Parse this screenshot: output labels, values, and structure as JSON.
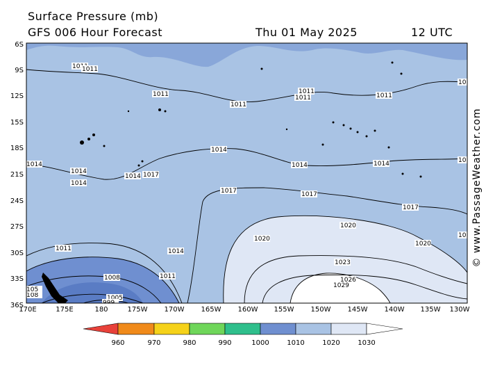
{
  "header": {
    "title": "Surface Pressure (mb)",
    "subtitle": "GFS 006 Hour Forecast",
    "date": "Thu 01 May 2025",
    "time": "12 UTC"
  },
  "credit": "© www.PassageWeather.com",
  "axes": {
    "lat_labels": [
      "6S",
      "9S",
      "12S",
      "15S",
      "18S",
      "21S",
      "24S",
      "27S",
      "30S",
      "33S",
      "36S"
    ],
    "lon_labels": [
      "170E",
      "175E",
      "180",
      "175W",
      "170W",
      "165W",
      "160W",
      "155W",
      "150W",
      "145W",
      "140W",
      "135W",
      "130W"
    ]
  },
  "legend": {
    "labels": [
      "960",
      "970",
      "980",
      "990",
      "1000",
      "1010",
      "1020",
      "1030"
    ],
    "colors": [
      "#e8413a",
      "#f08a1a",
      "#f5d21a",
      "#6fd65a",
      "#2fbf8c",
      "#6f8fd0",
      "#a9c3e4",
      "#dfe7f5",
      "#ffffff"
    ]
  },
  "contour_labels": [
    "1011",
    "1011",
    "1011",
    "1011",
    "1011",
    "1011",
    "1011",
    "1011",
    "1011",
    "1014",
    "1014",
    "1014",
    "1014",
    "1014",
    "1014",
    "1014",
    "1014",
    "1017",
    "1017",
    "1017",
    "1017",
    "1020",
    "1020",
    "1020",
    "1023",
    "1026",
    "1029",
    "1008",
    "1005",
    "1002",
    "999",
    "108",
    "105",
    "10",
    "10",
    "10"
  ]
}
